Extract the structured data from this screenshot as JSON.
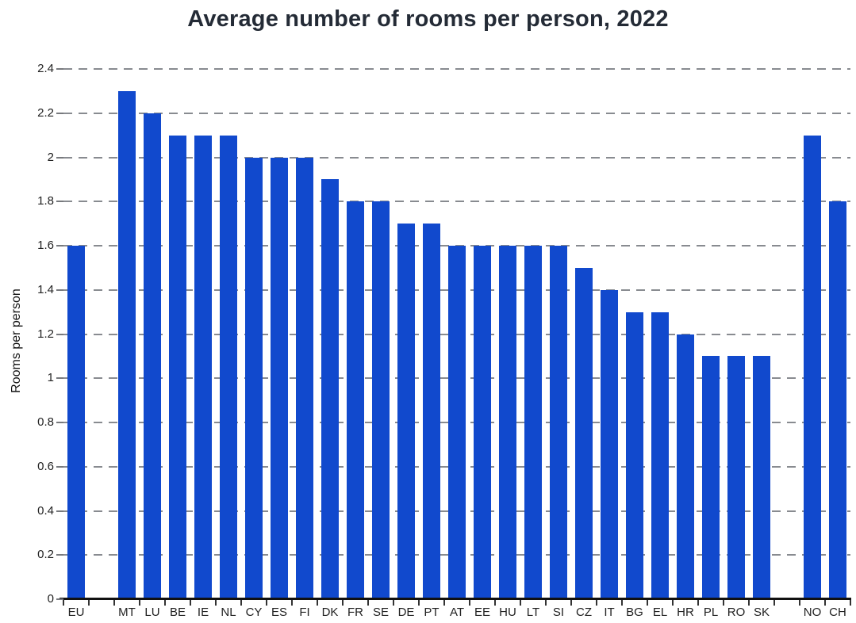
{
  "chart_data": {
    "type": "bar",
    "title": "Average number of rooms per person, 2022",
    "xlabel": "",
    "ylabel": "Rooms per person",
    "ylim": [
      0,
      2.4
    ],
    "ytick_step": 0.2,
    "ytick_labels": [
      "0",
      "0.2",
      "0.4",
      "0.6",
      "0.8",
      "1",
      "1.2",
      "1.4",
      "1.6",
      "1.8",
      "2",
      "2.2",
      "2.4"
    ],
    "grid": "dashed-horizontal",
    "legend": "none",
    "categories": [
      "EU",
      "MT",
      "LU",
      "BE",
      "IE",
      "NL",
      "CY",
      "ES",
      "FI",
      "DK",
      "FR",
      "SE",
      "DE",
      "PT",
      "AT",
      "EE",
      "HU",
      "LT",
      "SI",
      "CZ",
      "IT",
      "BG",
      "EL",
      "HR",
      "PL",
      "RO",
      "SK",
      "NO",
      "CH"
    ],
    "values": [
      1.6,
      2.3,
      2.2,
      2.1,
      2.1,
      2.1,
      2.0,
      2.0,
      2.0,
      1.9,
      1.8,
      1.8,
      1.7,
      1.7,
      1.6,
      1.6,
      1.6,
      1.6,
      1.6,
      1.5,
      1.4,
      1.3,
      1.3,
      1.2,
      1.1,
      1.1,
      1.1,
      2.1,
      1.8
    ],
    "gap_after_indices": [
      0,
      26
    ],
    "colors": {
      "bar": "#1149cd",
      "gridline": "#888b90",
      "axis": "#111111",
      "title_text": "#242b36",
      "tick_text": "#222222"
    }
  }
}
